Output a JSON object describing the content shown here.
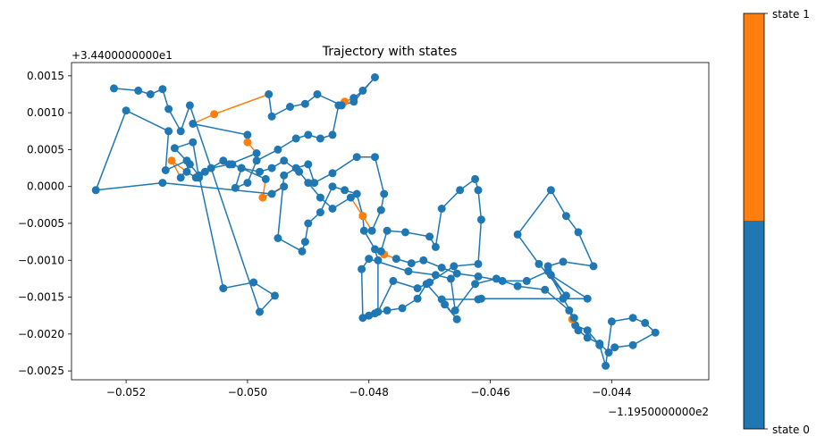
{
  "chart_data": {
    "type": "line",
    "title": "Trajectory with states",
    "xlabel": "",
    "ylabel": "",
    "x_offset_label": "−1.1950000000e2",
    "y_offset_label": "+3.4400000000e1",
    "xlim": [
      -0.0529,
      -0.0424
    ],
    "ylim": [
      -0.00262,
      0.00168
    ],
    "x_ticks": [
      -0.052,
      -0.05,
      -0.048,
      -0.046,
      -0.044
    ],
    "x_tick_labels": [
      "−0.052",
      "−0.050",
      "−0.048",
      "−0.046",
      "−0.044"
    ],
    "y_ticks": [
      0.0015,
      0.001,
      0.0005,
      0.0,
      -0.0005,
      -0.001,
      -0.0015,
      -0.002,
      -0.0025
    ],
    "y_tick_labels": [
      "0.0015",
      "0.0010",
      "0.0005",
      "0.0000",
      "−0.0005",
      "−0.0010",
      "−0.0015",
      "−0.0020",
      "−0.0025"
    ],
    "colors": {
      "state_0": "#1f77b4",
      "state_1": "#ff7f0e"
    },
    "colorbar": {
      "labels": [
        "state 1",
        "state 0"
      ]
    },
    "points": [
      [
        -0.04505,
        -0.00108,
        0
      ],
      [
        -0.0448,
        -0.00102,
        0
      ],
      [
        -0.0443,
        -0.00108,
        0
      ],
      [
        -0.04455,
        -0.00062,
        0
      ],
      [
        -0.04475,
        -0.0004,
        0
      ],
      [
        -0.045,
        -5e-05,
        0
      ],
      [
        -0.04555,
        -0.00065,
        0
      ],
      [
        -0.0452,
        -0.00105,
        0
      ],
      [
        -0.04475,
        -0.00148,
        0
      ],
      [
        -0.045,
        -0.0012,
        0
      ],
      [
        -0.0444,
        -0.00152,
        0
      ],
      [
        -0.0448,
        -0.00152,
        0
      ],
      [
        -0.04615,
        -0.00152,
        0
      ],
      [
        -0.0462,
        -0.00153,
        0
      ],
      [
        -0.0468,
        -0.00153,
        0
      ],
      [
        -0.04655,
        -0.0018,
        0
      ],
      [
        -0.04675,
        -0.0016,
        0
      ],
      [
        -0.04705,
        -0.00132,
        0
      ],
      [
        -0.0472,
        -0.00152,
        0
      ],
      [
        -0.04745,
        -0.00165,
        0
      ],
      [
        -0.0477,
        -0.00168,
        0
      ],
      [
        -0.0479,
        -0.00172,
        0
      ],
      [
        -0.048,
        -0.00175,
        0
      ],
      [
        -0.0481,
        -0.00178,
        0
      ],
      [
        -0.04812,
        -0.00112,
        0
      ],
      [
        -0.048,
        -0.00098,
        0
      ],
      [
        -0.04735,
        -0.00115,
        0
      ],
      [
        -0.0469,
        -0.0012,
        0
      ],
      [
        -0.04665,
        -0.00125,
        0
      ],
      [
        -0.04658,
        -0.00168,
        0
      ],
      [
        -0.04625,
        -0.00132,
        0
      ],
      [
        -0.0459,
        -0.00125,
        0
      ],
      [
        -0.04555,
        -0.00135,
        0
      ],
      [
        -0.0451,
        -0.0014,
        0
      ],
      [
        -0.0447,
        -0.00168,
        0
      ],
      [
        -0.0446,
        -0.00188,
        0
      ],
      [
        -0.0444,
        -0.00195,
        0
      ],
      [
        -0.0442,
        -0.00215,
        0
      ],
      [
        -0.0441,
        -0.00243,
        0
      ],
      [
        -0.044,
        -0.00183,
        0
      ],
      [
        -0.04365,
        -0.00178,
        0
      ],
      [
        -0.04345,
        -0.00185,
        0
      ],
      [
        -0.04328,
        -0.00198,
        0
      ],
      [
        -0.04365,
        -0.00215,
        0
      ],
      [
        -0.04395,
        -0.00218,
        0
      ],
      [
        -0.04405,
        -0.00225,
        0
      ],
      [
        -0.0442,
        -0.00213,
        0
      ],
      [
        -0.0444,
        -0.00205,
        0
      ],
      [
        -0.04455,
        -0.00195,
        0
      ],
      [
        -0.04465,
        -0.0018,
        1
      ],
      [
        -0.04462,
        -0.00178,
        0
      ],
      [
        -0.04505,
        -0.00115,
        0
      ],
      [
        -0.0454,
        -0.00128,
        0
      ],
      [
        -0.0458,
        -0.00128,
        0
      ],
      [
        -0.0462,
        -0.00122,
        0
      ],
      [
        -0.04655,
        -0.00118,
        0
      ],
      [
        -0.0468,
        -0.0011,
        0
      ],
      [
        -0.0471,
        -0.001,
        0
      ],
      [
        -0.0473,
        -0.00104,
        0
      ],
      [
        -0.04755,
        -0.00098,
        0
      ],
      [
        -0.04775,
        -0.00092,
        1
      ],
      [
        -0.0478,
        -0.00088,
        0
      ],
      [
        -0.0477,
        -0.0006,
        0
      ],
      [
        -0.0474,
        -0.00062,
        0
      ],
      [
        -0.047,
        -0.00068,
        0
      ],
      [
        -0.0469,
        -0.00082,
        0
      ],
      [
        -0.0468,
        -0.0003,
        0
      ],
      [
        -0.0465,
        -5e-05,
        0
      ],
      [
        -0.04625,
        0.0001,
        0
      ],
      [
        -0.0462,
        -5e-05,
        0
      ],
      [
        -0.04615,
        -0.00045,
        0
      ],
      [
        -0.0462,
        -0.00105,
        0
      ],
      [
        -0.0466,
        -0.00108,
        0
      ],
      [
        -0.047,
        -0.0013,
        0
      ],
      [
        -0.0472,
        -0.00138,
        0
      ],
      [
        -0.0476,
        -0.00128,
        0
      ],
      [
        -0.04785,
        -0.0017,
        0
      ],
      [
        -0.04785,
        -0.001,
        0
      ],
      [
        -0.0479,
        -0.00085,
        0
      ],
      [
        -0.04808,
        -0.0006,
        0
      ],
      [
        -0.0481,
        -0.0004,
        0
      ],
      [
        -0.0482,
        -0.0001,
        0
      ],
      [
        -0.0484,
        -5e-05,
        0
      ],
      [
        -0.0486,
        0.0,
        0
      ],
      [
        -0.0488,
        -0.00035,
        0
      ],
      [
        -0.049,
        -0.0005,
        0
      ],
      [
        -0.04905,
        -0.00075,
        0
      ],
      [
        -0.0491,
        -0.00088,
        0
      ],
      [
        -0.0495,
        -0.0007,
        0
      ],
      [
        -0.0494,
        0.00015,
        0
      ],
      [
        -0.0492,
        0.00025,
        0
      ],
      [
        -0.049,
        0.0003,
        0
      ],
      [
        -0.0489,
        5e-05,
        0
      ],
      [
        -0.0486,
        0.00018,
        0
      ],
      [
        -0.0482,
        0.0004,
        0
      ],
      [
        -0.0479,
        0.0004,
        0
      ],
      [
        -0.04775,
        -0.0001,
        0
      ],
      [
        -0.0478,
        -0.00032,
        0
      ],
      [
        -0.04795,
        -0.0006,
        0
      ],
      [
        -0.0481,
        -0.0004,
        1
      ],
      [
        -0.0483,
        -0.00015,
        0
      ],
      [
        -0.0486,
        -0.0003,
        0
      ],
      [
        -0.0488,
        -0.00015,
        0
      ],
      [
        -0.049,
        5e-05,
        0
      ],
      [
        -0.04915,
        0.0002,
        0
      ],
      [
        -0.0494,
        0.00035,
        0
      ],
      [
        -0.0496,
        0.00025,
        0
      ],
      [
        -0.0498,
        0.0002,
        0
      ],
      [
        -0.0501,
        0.00025,
        0
      ],
      [
        -0.0502,
        -2e-05,
        0
      ],
      [
        -0.05,
        5e-05,
        0
      ],
      [
        -0.04985,
        0.00035,
        0
      ],
      [
        -0.0495,
        0.0005,
        0
      ],
      [
        -0.0492,
        0.00065,
        0
      ],
      [
        -0.049,
        0.0007,
        0
      ],
      [
        -0.0488,
        0.00065,
        0
      ],
      [
        -0.0486,
        0.0007,
        0
      ],
      [
        -0.0485,
        0.0011,
        0
      ],
      [
        -0.0484,
        0.00115,
        1
      ],
      [
        -0.04825,
        0.0012,
        0
      ],
      [
        -0.0481,
        0.0013,
        0
      ],
      [
        -0.0479,
        0.00148,
        0
      ],
      [
        -0.04825,
        0.00115,
        0
      ],
      [
        -0.04845,
        0.0011,
        0
      ],
      [
        -0.04885,
        0.00125,
        0
      ],
      [
        -0.04905,
        0.00112,
        0
      ],
      [
        -0.0493,
        0.00108,
        0
      ],
      [
        -0.0496,
        0.00095,
        0
      ],
      [
        -0.04965,
        0.00125,
        0
      ],
      [
        -0.05055,
        0.00098,
        1
      ],
      [
        -0.0509,
        0.00085,
        0
      ],
      [
        -0.05,
        0.0007,
        0
      ],
      [
        -0.05,
        0.0006,
        1
      ],
      [
        -0.04985,
        0.00045,
        0
      ],
      [
        -0.0503,
        0.0003,
        0
      ],
      [
        -0.0506,
        0.00025,
        0
      ],
      [
        -0.0508,
        0.00012,
        0
      ],
      [
        -0.0509,
        0.0006,
        0
      ],
      [
        -0.0512,
        0.00052,
        0
      ],
      [
        -0.05095,
        0.0003,
        0
      ],
      [
        -0.0511,
        0.00012,
        0
      ],
      [
        -0.05125,
        0.00035,
        1
      ],
      [
        -0.051,
        0.0002,
        0
      ],
      [
        -0.05085,
        0.00012,
        0
      ],
      [
        -0.0507,
        0.0002,
        0
      ],
      [
        -0.0504,
        0.00035,
        0
      ],
      [
        -0.05025,
        0.0003,
        0
      ],
      [
        -0.0501,
        0.00025,
        0
      ],
      [
        -0.0497,
        0.0001,
        0
      ],
      [
        -0.04975,
        -0.00015,
        1
      ],
      [
        -0.0494,
        0.0,
        0
      ],
      [
        -0.0496,
        -0.0001,
        0
      ],
      [
        -0.0514,
        5e-05,
        0
      ],
      [
        -0.0525,
        -5e-05,
        0
      ],
      [
        -0.052,
        0.00103,
        0
      ],
      [
        -0.0513,
        0.00075,
        0
      ],
      [
        -0.05135,
        0.00022,
        0
      ],
      [
        -0.051,
        0.00035,
        0
      ],
      [
        -0.0508,
        0.00015,
        0
      ],
      [
        -0.0504,
        -0.00138,
        0
      ],
      [
        -0.0499,
        -0.0013,
        0
      ],
      [
        -0.04955,
        -0.00148,
        0
      ],
      [
        -0.0498,
        -0.0017,
        0
      ],
      [
        -0.05095,
        0.0011,
        0
      ],
      [
        -0.0511,
        0.00075,
        0
      ],
      [
        -0.0513,
        0.00105,
        0
      ],
      [
        -0.0514,
        0.00132,
        0
      ],
      [
        -0.0516,
        0.00125,
        0
      ],
      [
        -0.0518,
        0.0013,
        0
      ],
      [
        -0.0522,
        0.00133,
        0
      ]
    ]
  }
}
